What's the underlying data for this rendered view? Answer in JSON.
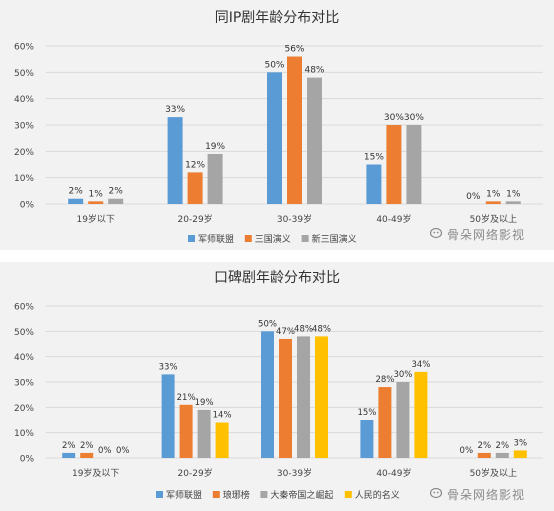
{
  "watermark": "骨朵网络影视",
  "chart_data": [
    {
      "type": "bar",
      "title": "同IP剧年龄分布对比",
      "categories": [
        "19岁以下",
        "20-29岁",
        "30-39岁",
        "40-49岁",
        "50岁及以上"
      ],
      "ylim": [
        0,
        60
      ],
      "yticks": [
        "0%",
        "10%",
        "20%",
        "30%",
        "40%",
        "50%",
        "60%"
      ],
      "value_suffix": "%",
      "grid": true,
      "legend_position": "bottom",
      "series": [
        {
          "name": "军师联盟",
          "color": "#5b9bd5",
          "values": [
            2,
            33,
            50,
            15,
            0
          ]
        },
        {
          "name": "三国演义",
          "color": "#ed7d31",
          "values": [
            1,
            12,
            56,
            30,
            1
          ]
        },
        {
          "name": "新三国演义",
          "color": "#a5a5a5",
          "values": [
            2,
            19,
            48,
            30,
            1
          ]
        }
      ]
    },
    {
      "type": "bar",
      "title": "口碑剧年龄分布对比",
      "categories": [
        "19岁及以下",
        "20-29岁",
        "30-39岁",
        "40-49岁",
        "50岁及以上"
      ],
      "ylim": [
        0,
        60
      ],
      "yticks": [
        "0%",
        "10%",
        "20%",
        "30%",
        "40%",
        "50%",
        "60%"
      ],
      "value_suffix": "%",
      "grid": true,
      "legend_position": "bottom",
      "series": [
        {
          "name": "军师联盟",
          "color": "#5b9bd5",
          "values": [
            2,
            33,
            50,
            15,
            0
          ]
        },
        {
          "name": "琅琊榜",
          "color": "#ed7d31",
          "values": [
            2,
            21,
            47,
            28,
            2
          ]
        },
        {
          "name": "大秦帝国之崛起",
          "color": "#a5a5a5",
          "values": [
            0,
            19,
            48,
            30,
            2
          ]
        },
        {
          "name": "人民的名义",
          "color": "#ffc000",
          "values": [
            0,
            14,
            48,
            34,
            3
          ]
        }
      ]
    }
  ]
}
